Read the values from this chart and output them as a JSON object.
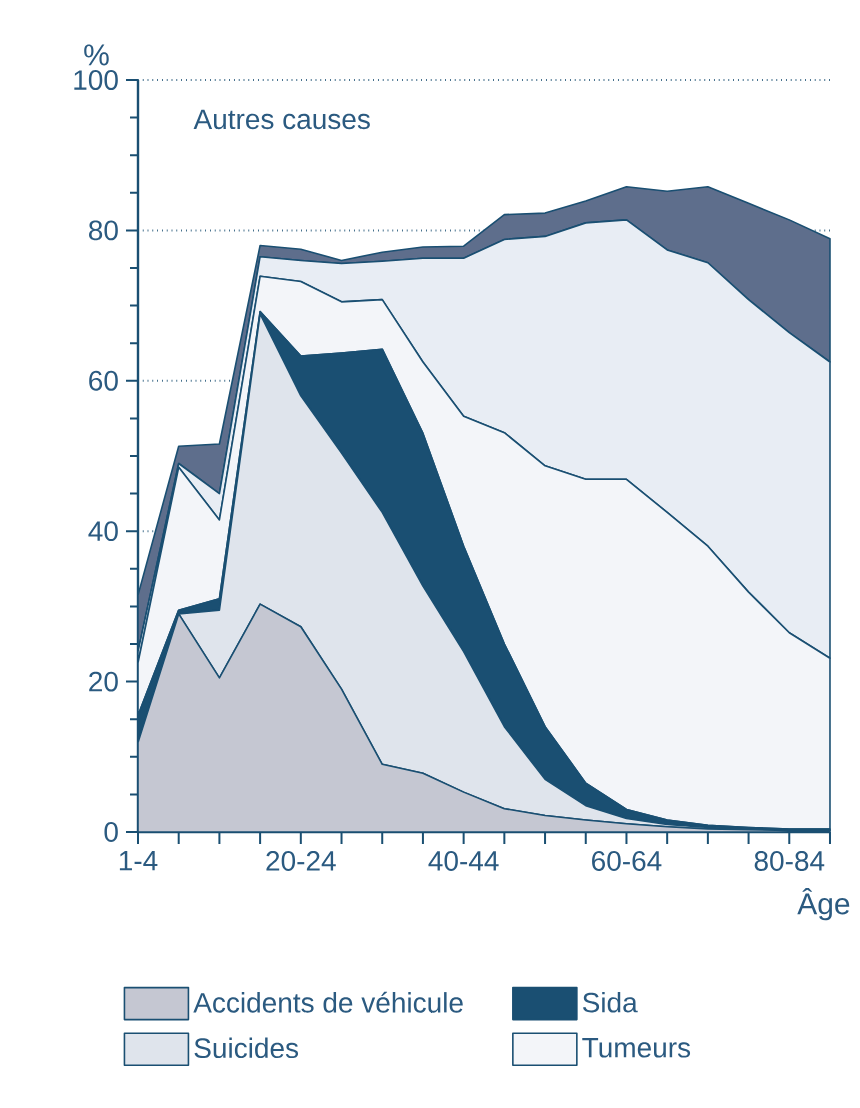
{
  "chart_data": {
    "type": "area",
    "stacked": true,
    "ylabel": "%",
    "xlabel": "Âge",
    "annotations": [
      "Autres causes"
    ],
    "categories": [
      "1-4",
      null,
      null,
      null,
      "20-24",
      null,
      null,
      null,
      "40-44",
      null,
      null,
      null,
      "60-64",
      null,
      null,
      null,
      "80-84",
      null
    ],
    "ylim": [
      0,
      100
    ],
    "yticks": [
      0,
      20,
      40,
      60,
      80,
      100
    ],
    "grid": "y",
    "legend": "bottom",
    "series": [
      {
        "name": "Accidents de véhicule",
        "color": "#c5c7d2",
        "values": [
          11.9,
          29,
          20.5,
          30.3,
          27.3,
          19,
          9,
          7.8,
          5.3,
          3.1,
          2.2,
          1.6,
          1.1,
          0.7,
          0.4,
          0.3,
          0.2,
          0.2
        ]
      },
      {
        "name": "Suicides",
        "color": "#dfe4ec",
        "values": [
          0,
          0,
          9,
          38.6,
          30.7,
          31.4,
          33.5,
          24.9,
          18.7,
          10.9,
          4.8,
          1.9,
          0.7,
          0.3,
          0.2,
          0.1,
          0.1,
          0.1
        ]
      },
      {
        "name": "Sida",
        "color": "#1a4f72",
        "values": [
          3.6,
          0.5,
          1.5,
          0.3,
          5.3,
          13.3,
          21.7,
          20.3,
          14,
          11,
          7,
          3,
          1.2,
          0.6,
          0.3,
          0.2,
          0.1,
          0.1
        ]
      },
      {
        "name": "Tumeurs",
        "color": "#f3f5f9",
        "values": [
          7,
          19,
          10.5,
          4.7,
          9.9,
          6.8,
          6.6,
          9.5,
          17.3,
          28.1,
          34.7,
          40.4,
          43.9,
          40.9,
          37.1,
          31.3,
          26.1,
          22.7
        ]
      },
      {
        "color": "#e8edf4",
        "values": [
          1.5,
          0.5,
          3.5,
          2.6,
          2.8,
          5.1,
          5.1,
          13.8,
          21,
          25.7,
          30.5,
          34.1,
          34.5,
          34.9,
          37.7,
          38.9,
          39.9,
          39.4
        ]
      },
      {
        "color": "#5e6e8c",
        "values": [
          7.5,
          2.3,
          6.6,
          1.5,
          1.5,
          0.4,
          1.2,
          1.5,
          1.6,
          3.3,
          3.1,
          2.9,
          4.4,
          7.8,
          10.1,
          12.8,
          15,
          16.4
        ]
      }
    ]
  }
}
